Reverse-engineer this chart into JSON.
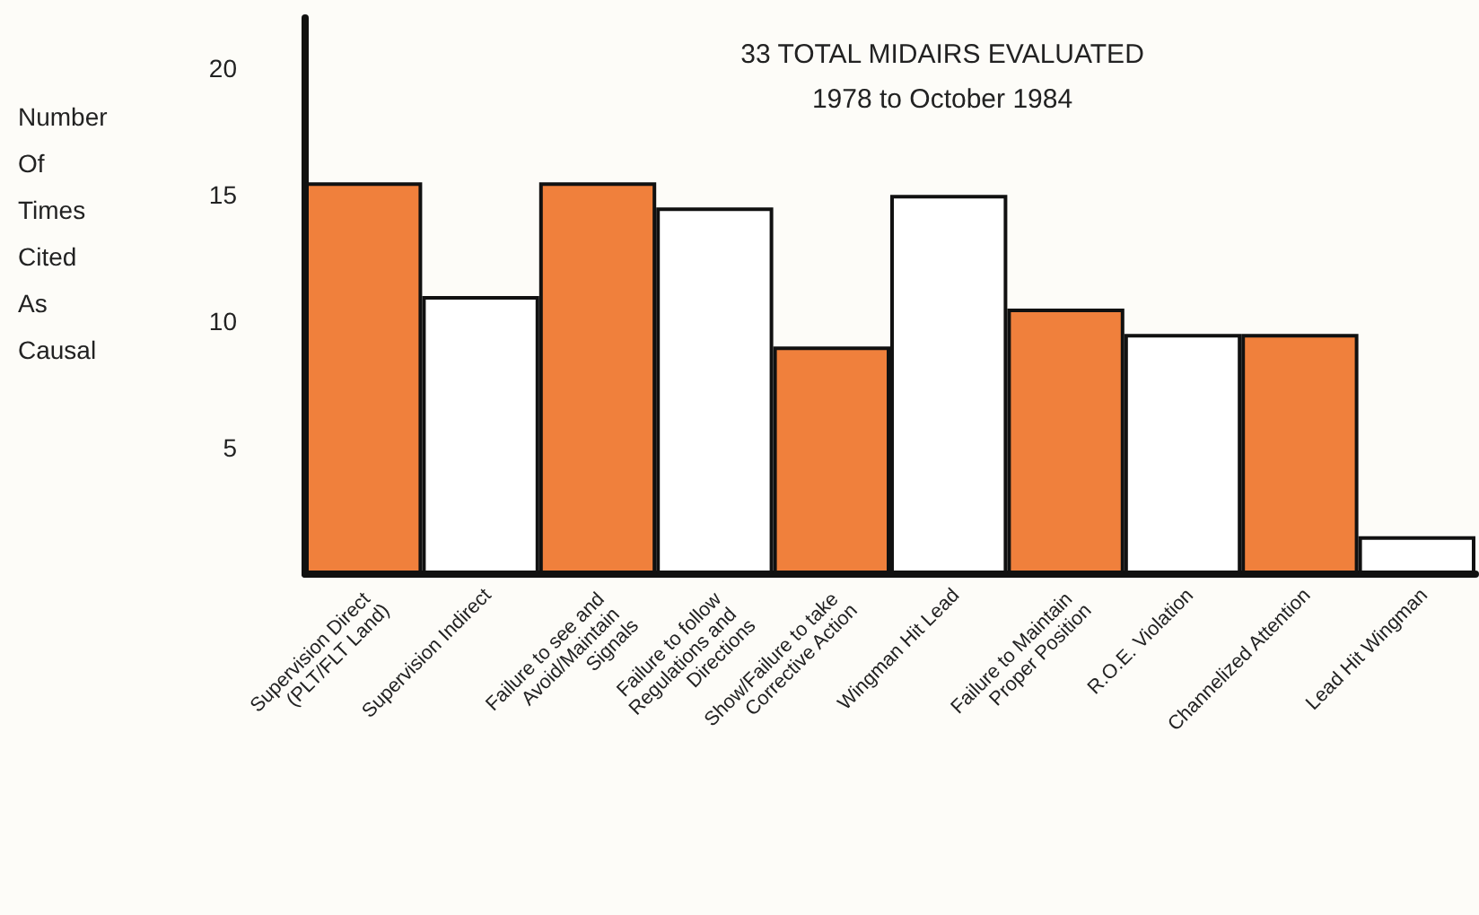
{
  "chart_data": {
    "type": "bar",
    "title": "33 TOTAL MIDAIRS EVALUATED",
    "subtitle": "1978 to October 1984",
    "ylabel": "Number Of Times Cited As Causal",
    "categories": [
      "Supervision Direct (PLT/FLT Land)",
      "Supervision Indirect",
      "Failure to see and Avoid/Maintain Signals",
      "Failure to follow Regulations and Directions",
      "Show/Failure to take Corrective Action",
      "Wingman Hit Lead",
      "Failure to Maintain Proper Position",
      "R.O.E. Violation",
      "Channelized Attention",
      "Lead Hit Wingman"
    ],
    "values": [
      15.5,
      11,
      15.5,
      14.5,
      9,
      15,
      10.5,
      9.5,
      9.5,
      1.5
    ],
    "colors": [
      "#f0803c",
      "#ffffff",
      "#f0803c",
      "#ffffff",
      "#f0803c",
      "#ffffff",
      "#f0803c",
      "#ffffff",
      "#f0803c",
      "#ffffff"
    ],
    "ylim": [
      0,
      22
    ],
    "yticks": [
      5,
      10,
      15,
      20
    ],
    "grid": false
  }
}
